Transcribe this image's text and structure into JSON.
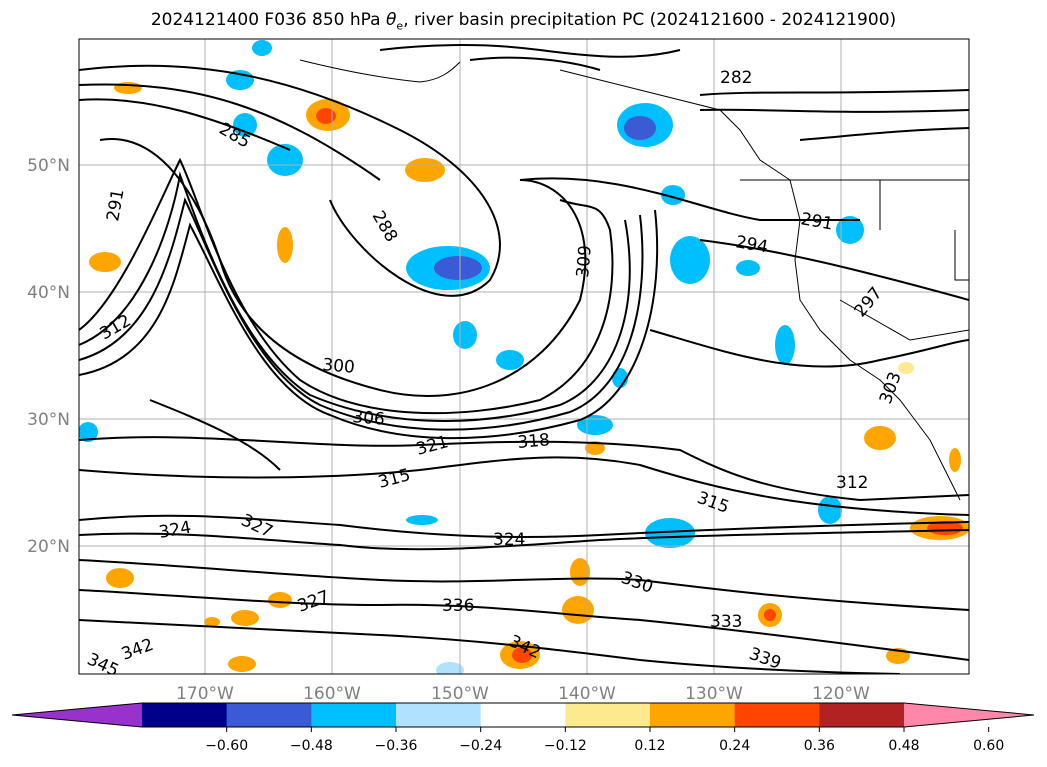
{
  "title": {
    "prefix": "2024121400 F036 850 hPa ",
    "theta_symbol": "θ",
    "theta_sub": "e",
    "suffix": ", river basin precipitation PC (2024121600 - 2024121900)"
  },
  "map": {
    "lat_labels": [
      "50°N",
      "40°N",
      "30°N",
      "20°N"
    ],
    "lon_labels": [
      "170°W",
      "160°W",
      "150°W",
      "140°W",
      "130°W",
      "120°W"
    ],
    "theta_e_contour_labels": [
      "285",
      "288",
      "291",
      "291",
      "294",
      "297",
      "300",
      "303",
      "306",
      "309",
      "312",
      "312",
      "315",
      "315",
      "318",
      "321",
      "324",
      "324",
      "327",
      "327",
      "330",
      "333",
      "336",
      "339",
      "342",
      "342",
      "345",
      "282"
    ]
  },
  "colorbar": {
    "colors": [
      "#9932cc",
      "#00008b",
      "#3b5bd6",
      "#00bfff",
      "#b0e2ff",
      "#ffffff",
      "#fdea8f",
      "#ffa500",
      "#ff4500",
      "#b22222",
      "#ff88aa"
    ],
    "tick_labels": [
      "−0.60",
      "−0.48",
      "−0.36",
      "−0.24",
      "−0.12",
      "0.12",
      "0.24",
      "0.36",
      "0.48",
      "0.60"
    ]
  }
}
